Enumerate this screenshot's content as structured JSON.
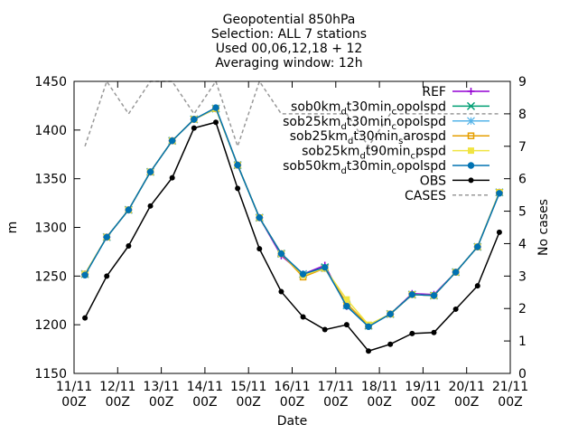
{
  "chart_data": {
    "type": "line",
    "title_lines": [
      "Geopotential 850hPa",
      "Selection: ALL       7 stations",
      "Used 00,06,12,18 + 12",
      "Averaging window: 12h"
    ],
    "xlabel": "Date",
    "ylabel": "m",
    "y2label": "No cases",
    "ylim": [
      1150,
      1450
    ],
    "y2lim": [
      0,
      9
    ],
    "xlim": [
      0,
      10
    ],
    "yticks": [
      1150,
      1200,
      1250,
      1300,
      1350,
      1400,
      1450
    ],
    "y2ticks": [
      0,
      1,
      2,
      3,
      4,
      5,
      6,
      7,
      8,
      9
    ],
    "xticks": [
      {
        "x": 0,
        "l1": "11/11",
        "l2": "00Z"
      },
      {
        "x": 1,
        "l1": "12/11",
        "l2": "00Z"
      },
      {
        "x": 2,
        "l1": "13/11",
        "l2": "00Z"
      },
      {
        "x": 3,
        "l1": "14/11",
        "l2": "00Z"
      },
      {
        "x": 4,
        "l1": "15/11",
        "l2": "00Z"
      },
      {
        "x": 5,
        "l1": "16/11",
        "l2": "00Z"
      },
      {
        "x": 6,
        "l1": "17/11",
        "l2": "00Z"
      },
      {
        "x": 7,
        "l1": "18/11",
        "l2": "00Z"
      },
      {
        "x": 8,
        "l1": "19/11",
        "l2": "00Z"
      },
      {
        "x": 9,
        "l1": "20/11",
        "l2": "00Z"
      },
      {
        "x": 10,
        "l1": "21/11",
        "l2": "00Z"
      }
    ],
    "x": [
      0.25,
      0.75,
      1.25,
      1.75,
      2.25,
      2.75,
      3.25,
      3.75,
      4.25,
      4.75,
      5.25,
      5.75,
      6.25,
      6.75,
      7.25,
      7.75,
      8.25,
      8.75,
      9.25,
      9.75
    ],
    "series": [
      {
        "name": "REF",
        "base": "",
        "sub": "",
        "rest": "",
        "color": "#9400d3",
        "marker": "plus",
        "values": [
          1252,
          1290,
          1318,
          1357,
          1389,
          1411,
          1422,
          1364,
          1310,
          1271,
          1252,
          1261,
          1219,
          1199,
          1211,
          1232,
          1231,
          1254,
          1280,
          1336
        ]
      },
      {
        "name": "",
        "base": "sob0km",
        "sub": "d",
        "rest": "t30min",
        "sub2": "c",
        "rest2": "opolspd",
        "color": "#009e73",
        "marker": "cross",
        "values": [
          1252,
          1290,
          1318,
          1357,
          1389,
          1411,
          1422,
          1364,
          1310,
          1273,
          1252,
          1259,
          1220,
          1199,
          1211,
          1231,
          1230,
          1254,
          1280,
          1336
        ]
      },
      {
        "name": "",
        "base": "sob25km",
        "sub": "d",
        "rest": "t30min",
        "sub2": "c",
        "rest2": "opolspd",
        "color": "#56b4e9",
        "marker": "star",
        "values": [
          1252,
          1290,
          1318,
          1357,
          1389,
          1411,
          1422,
          1364,
          1310,
          1273,
          1252,
          1258,
          1220,
          1199,
          1211,
          1231,
          1230,
          1254,
          1280,
          1336
        ]
      },
      {
        "name": "",
        "base": "sob25km",
        "sub": "d",
        "rest": "t30min",
        "sub2": "s",
        "rest2": "arospd",
        "color": "#e69f00",
        "marker": "box",
        "values": [
          1252,
          1290,
          1318,
          1357,
          1389,
          1411,
          1422,
          1364,
          1310,
          1273,
          1249,
          1258,
          1222,
          1199,
          1211,
          1231,
          1230,
          1254,
          1280,
          1336
        ]
      },
      {
        "name": "",
        "base": "sob25km",
        "sub": "d",
        "rest": "t90min",
        "sub2": "c",
        "rest2": "pspd",
        "color": "#f0e442",
        "marker": "fbox",
        "values": [
          1252,
          1290,
          1318,
          1357,
          1389,
          1411,
          1422,
          1364,
          1310,
          1273,
          1251,
          1258,
          1226,
          1200,
          1211,
          1231,
          1230,
          1254,
          1280,
          1336
        ]
      },
      {
        "name": "",
        "base": "sob50km",
        "sub": "d",
        "rest": "t30min",
        "sub2": "c",
        "rest2": "opolspd",
        "color": "#0072b2",
        "marker": "circle",
        "values": [
          1251,
          1290,
          1318,
          1357,
          1389,
          1411,
          1423,
          1364,
          1310,
          1273,
          1252,
          1259,
          1219,
          1198,
          1211,
          1231,
          1230,
          1254,
          1280,
          1335
        ]
      },
      {
        "name": "OBS",
        "base": "",
        "sub": "",
        "rest": "",
        "color": "#000000",
        "marker": "fcircle",
        "values": [
          1207,
          1250,
          1281,
          1322,
          1351,
          1402,
          1408,
          1340,
          1278,
          1234,
          1208,
          1195,
          1200,
          1173,
          1180,
          1191,
          1192,
          1216,
          1240,
          1295
        ]
      }
    ],
    "cases": {
      "name": "CASES",
      "color": "#999999",
      "x": [
        0.25,
        0.75,
        1.25,
        1.75,
        2.25,
        2.75,
        3.25,
        3.75,
        4.25,
        4.75,
        5.25,
        5.75,
        6.25,
        6.75,
        7.25,
        7.75,
        8.25,
        8.75,
        9.25,
        9.75
      ],
      "values": [
        7,
        9,
        8,
        9,
        9,
        8,
        9,
        7,
        9,
        8,
        8,
        8,
        8,
        7,
        8,
        8,
        8,
        8,
        8,
        8
      ]
    },
    "legend_position": "top-right",
    "grid": false
  }
}
